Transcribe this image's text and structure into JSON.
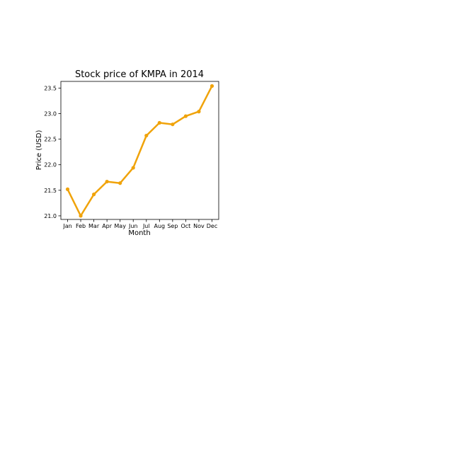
{
  "chart_data": {
    "type": "line",
    "title": "Stock price of KMPA in 2014",
    "xlabel": "Month",
    "ylabel": "Price (USD)",
    "categories": [
      "Jan",
      "Feb",
      "Mar",
      "Apr",
      "May",
      "Jun",
      "Jul",
      "Aug",
      "Sep",
      "Oct",
      "Nov",
      "Dec"
    ],
    "series": [
      {
        "values": [
          21.52,
          21.0,
          21.42,
          21.67,
          21.64,
          21.94,
          22.57,
          22.82,
          22.79,
          22.95,
          23.04,
          23.54
        ],
        "color": "#f0a30a"
      }
    ],
    "ylim": [
      20.93,
      23.63
    ],
    "yticks": [
      21.0,
      21.5,
      22.0,
      22.5,
      23.0,
      23.5
    ],
    "ytick_labels": [
      "21.0",
      "21.5",
      "22.0",
      "22.5",
      "23.0",
      "23.5"
    ],
    "grid": false,
    "legend": false
  }
}
